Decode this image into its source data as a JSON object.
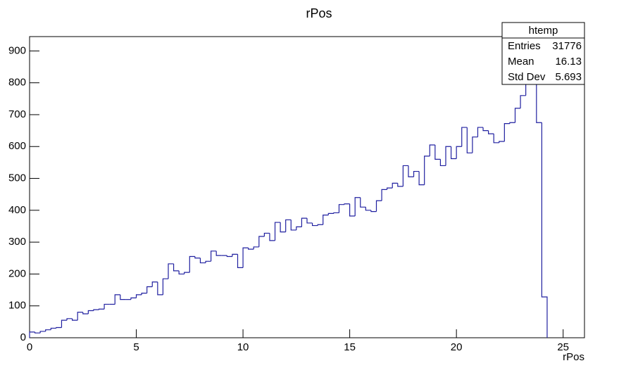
{
  "chart_data": {
    "type": "histogram",
    "title": "rPos",
    "x_label": "rPos",
    "color": "#2020a0",
    "bins": [
      0,
      0.25,
      0.5,
      0.75,
      1,
      1.25,
      1.5,
      1.75,
      2,
      2.25,
      2.5,
      2.75,
      3,
      3.25,
      3.5,
      3.75,
      4,
      4.25,
      4.5,
      4.75,
      5,
      5.25,
      5.5,
      5.75,
      6,
      6.25,
      6.5,
      6.75,
      7,
      7.25,
      7.5,
      7.75,
      8,
      8.25,
      8.5,
      8.75,
      9,
      9.25,
      9.5,
      9.75,
      10,
      10.25,
      10.5,
      10.75,
      11,
      11.25,
      11.5,
      11.75,
      12,
      12.25,
      12.5,
      12.75,
      13,
      13.25,
      13.5,
      13.75,
      14,
      14.25,
      14.5,
      14.75,
      15,
      15.25,
      15.5,
      15.75,
      16,
      16.25,
      16.5,
      16.75,
      17,
      17.25,
      17.5,
      17.75,
      18,
      18.25,
      18.5,
      18.75,
      19,
      19.25,
      19.5,
      19.75,
      20,
      20.25,
      20.5,
      20.75,
      21,
      21.25,
      21.5,
      21.75,
      22,
      22.25,
      22.5,
      22.75,
      23,
      23.25,
      23.5,
      23.75,
      24,
      24.25
    ],
    "values": [
      18,
      15,
      20,
      25,
      30,
      32,
      55,
      60,
      55,
      80,
      75,
      85,
      88,
      90,
      105,
      105,
      135,
      120,
      120,
      125,
      135,
      140,
      160,
      175,
      135,
      185,
      232,
      210,
      200,
      205,
      255,
      250,
      235,
      240,
      272,
      258,
      258,
      255,
      262,
      220,
      282,
      278,
      285,
      318,
      328,
      305,
      362,
      332,
      370,
      338,
      348,
      375,
      360,
      352,
      355,
      385,
      390,
      392,
      418,
      420,
      382,
      440,
      410,
      400,
      396,
      430,
      465,
      470,
      485,
      475,
      540,
      505,
      522,
      480,
      570,
      605,
      560,
      540,
      600,
      562,
      600,
      660,
      580,
      630,
      660,
      650,
      640,
      612,
      616,
      672,
      675,
      720,
      760,
      800,
      830,
      675,
      128
    ],
    "xlim": [
      0,
      26
    ],
    "ylim": [
      0,
      945
    ],
    "xticks": [
      0,
      5,
      10,
      15,
      20,
      25
    ],
    "yticks": [
      0,
      100,
      200,
      300,
      400,
      500,
      600,
      700,
      800,
      900
    ],
    "stats": {
      "title": "htemp",
      "rows": [
        [
          "Entries",
          31776
        ],
        [
          "Mean",
          16.13
        ],
        [
          "Std Dev",
          5.693
        ]
      ]
    }
  }
}
